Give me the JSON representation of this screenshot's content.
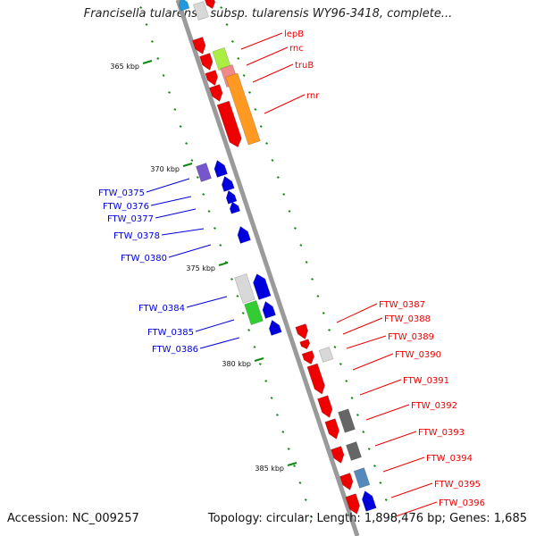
{
  "header": {
    "title": "Francisella tularensis subsp. tularensis WY96-3418, complete..."
  },
  "footer": {
    "accession": "Accession: NC_009257",
    "summary": "Topology: circular; Length: 1,898,476 bp; Genes: 1,685"
  },
  "colors": {
    "forward_gene": "#ee0000",
    "reverse_gene": "#0000dd",
    "backbone": "#888888",
    "tick": "#118811",
    "purple_gene": "#7755cc",
    "tan_gene": "#d8d8d8",
    "green_gene": "#33cc33",
    "orange_gene": "#ff9922",
    "steel_gene": "#5588bb",
    "gray_gene": "#666666",
    "lime_gene": "#aaee44"
  },
  "ticks": [
    "365 kbp",
    "370 kbp",
    "375 kbp",
    "380 kbp",
    "385 kbp"
  ],
  "genes_right": [
    "lepB",
    "rnc",
    "truB",
    "rnr",
    "FTW_0387",
    "FTW_0388",
    "FTW_0389",
    "FTW_0390",
    "FTW_0391",
    "FTW_0392",
    "FTW_0393",
    "FTW_0394",
    "FTW_0395",
    "FTW_0396"
  ],
  "genes_left": [
    "FTW_0375",
    "FTW_0376",
    "FTW_0377",
    "FTW_0378",
    "FTW_0380",
    "FTW_0384",
    "FTW_0385",
    "FTW_0386"
  ]
}
